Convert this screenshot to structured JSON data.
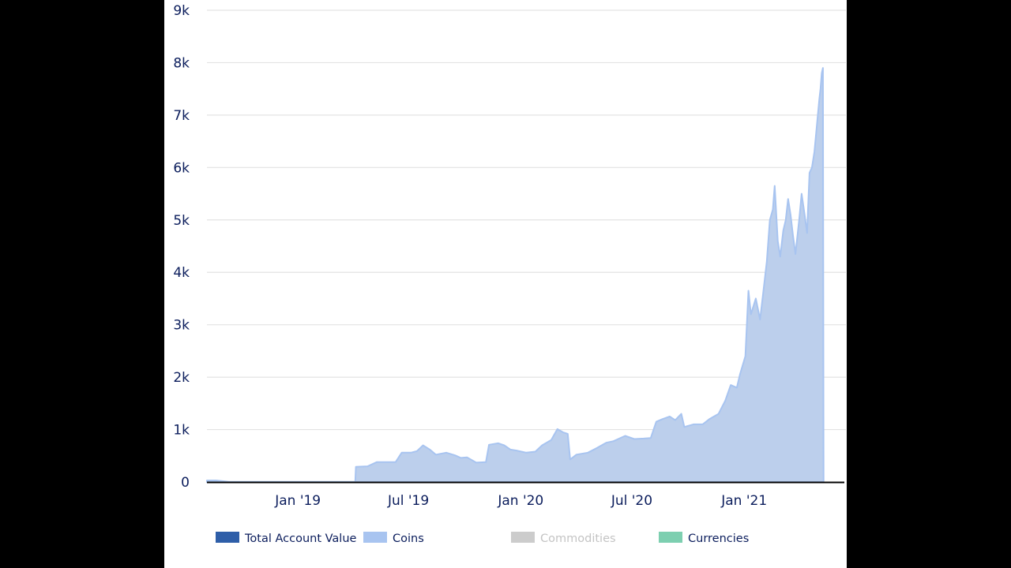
{
  "chart_data": {
    "type": "area",
    "title": "",
    "xlabel": "",
    "ylabel": "",
    "ylim": [
      0,
      9000
    ],
    "y_ticks": [
      {
        "value": 0,
        "label": "0"
      },
      {
        "value": 1000,
        "label": "1k"
      },
      {
        "value": 2000,
        "label": "2k"
      },
      {
        "value": 3000,
        "label": "3k"
      },
      {
        "value": 4000,
        "label": "4k"
      },
      {
        "value": 5000,
        "label": "5k"
      },
      {
        "value": 6000,
        "label": "6k"
      },
      {
        "value": 7000,
        "label": "7k"
      },
      {
        "value": 8000,
        "label": "8k"
      },
      {
        "value": 9000,
        "label": "9k"
      }
    ],
    "x_range": [
      "2018-08-05",
      "2021-06-05"
    ],
    "x_ticks": [
      {
        "date": "2019-01-01",
        "label": "Jan '19"
      },
      {
        "date": "2019-07-01",
        "label": "Jul '19"
      },
      {
        "date": "2020-01-01",
        "label": "Jan '20"
      },
      {
        "date": "2020-07-01",
        "label": "Jul '20"
      },
      {
        "date": "2021-01-01",
        "label": "Jan '21"
      }
    ],
    "grid": true,
    "legend_position": "bottom",
    "series": [
      {
        "name": "Coins",
        "color": "#a8c4f0",
        "fill": "#bccfec",
        "points": [
          [
            "2018-08-05",
            30
          ],
          [
            "2018-08-20",
            30
          ],
          [
            "2018-09-10",
            5
          ],
          [
            "2019-04-05",
            5
          ],
          [
            "2019-04-06",
            290
          ],
          [
            "2019-04-25",
            300
          ],
          [
            "2019-05-10",
            380
          ],
          [
            "2019-05-25",
            380
          ],
          [
            "2019-06-10",
            380
          ],
          [
            "2019-06-20",
            560
          ],
          [
            "2019-07-05",
            560
          ],
          [
            "2019-07-15",
            590
          ],
          [
            "2019-07-25",
            700
          ],
          [
            "2019-08-05",
            620
          ],
          [
            "2019-08-15",
            520
          ],
          [
            "2019-09-01",
            560
          ],
          [
            "2019-09-15",
            510
          ],
          [
            "2019-09-25",
            460
          ],
          [
            "2019-10-05",
            470
          ],
          [
            "2019-10-20",
            370
          ],
          [
            "2019-11-05",
            380
          ],
          [
            "2019-11-10",
            710
          ],
          [
            "2019-11-25",
            740
          ],
          [
            "2019-12-05",
            700
          ],
          [
            "2019-12-15",
            620
          ],
          [
            "2019-12-25",
            600
          ],
          [
            "2020-01-10",
            560
          ],
          [
            "2020-01-25",
            580
          ],
          [
            "2020-02-05",
            700
          ],
          [
            "2020-02-20",
            800
          ],
          [
            "2020-03-01",
            1010
          ],
          [
            "2020-03-10",
            950
          ],
          [
            "2020-03-18",
            920
          ],
          [
            "2020-03-22",
            430
          ],
          [
            "2020-04-01",
            520
          ],
          [
            "2020-04-20",
            560
          ],
          [
            "2020-05-05",
            650
          ],
          [
            "2020-05-20",
            750
          ],
          [
            "2020-06-01",
            780
          ],
          [
            "2020-06-20",
            880
          ],
          [
            "2020-07-05",
            820
          ],
          [
            "2020-07-20",
            830
          ],
          [
            "2020-08-01",
            840
          ],
          [
            "2020-08-10",
            1150
          ],
          [
            "2020-08-20",
            1200
          ],
          [
            "2020-09-01",
            1250
          ],
          [
            "2020-09-10",
            1180
          ],
          [
            "2020-09-20",
            1300
          ],
          [
            "2020-09-25",
            1050
          ],
          [
            "2020-10-10",
            1100
          ],
          [
            "2020-10-25",
            1100
          ],
          [
            "2020-11-05",
            1200
          ],
          [
            "2020-11-20",
            1300
          ],
          [
            "2020-12-01",
            1550
          ],
          [
            "2020-12-10",
            1850
          ],
          [
            "2020-12-20",
            1800
          ],
          [
            "2020-12-25",
            2050
          ],
          [
            "2021-01-03",
            2400
          ],
          [
            "2021-01-08",
            3650
          ],
          [
            "2021-01-12",
            3200
          ],
          [
            "2021-01-20",
            3500
          ],
          [
            "2021-01-27",
            3100
          ],
          [
            "2021-02-01",
            3600
          ],
          [
            "2021-02-07",
            4200
          ],
          [
            "2021-02-12",
            5000
          ],
          [
            "2021-02-17",
            5200
          ],
          [
            "2021-02-20",
            5650
          ],
          [
            "2021-02-25",
            4600
          ],
          [
            "2021-03-01",
            4300
          ],
          [
            "2021-03-06",
            4800
          ],
          [
            "2021-03-10",
            5000
          ],
          [
            "2021-03-14",
            5400
          ],
          [
            "2021-03-18",
            5100
          ],
          [
            "2021-03-22",
            4700
          ],
          [
            "2021-03-26",
            4350
          ],
          [
            "2021-04-01",
            5000
          ],
          [
            "2021-04-05",
            5500
          ],
          [
            "2021-04-10",
            5100
          ],
          [
            "2021-04-14",
            4750
          ],
          [
            "2021-04-18",
            5900
          ],
          [
            "2021-04-22",
            6000
          ],
          [
            "2021-04-26",
            6300
          ],
          [
            "2021-04-30",
            6800
          ],
          [
            "2021-05-04",
            7300
          ],
          [
            "2021-05-06",
            7500
          ],
          [
            "2021-05-08",
            7800
          ],
          [
            "2021-05-10",
            7900
          ],
          [
            "2021-05-11",
            0
          ]
        ]
      }
    ],
    "legend": [
      {
        "label": "Total Account Value",
        "color": "#2e5ea8",
        "active": true
      },
      {
        "label": "Coins",
        "color": "#a8c4f0",
        "active": true
      },
      {
        "label": "Commodities",
        "color": "#cccccc",
        "active": false
      },
      {
        "label": "Currencies",
        "color": "#7dcfb0",
        "active": true
      }
    ]
  }
}
